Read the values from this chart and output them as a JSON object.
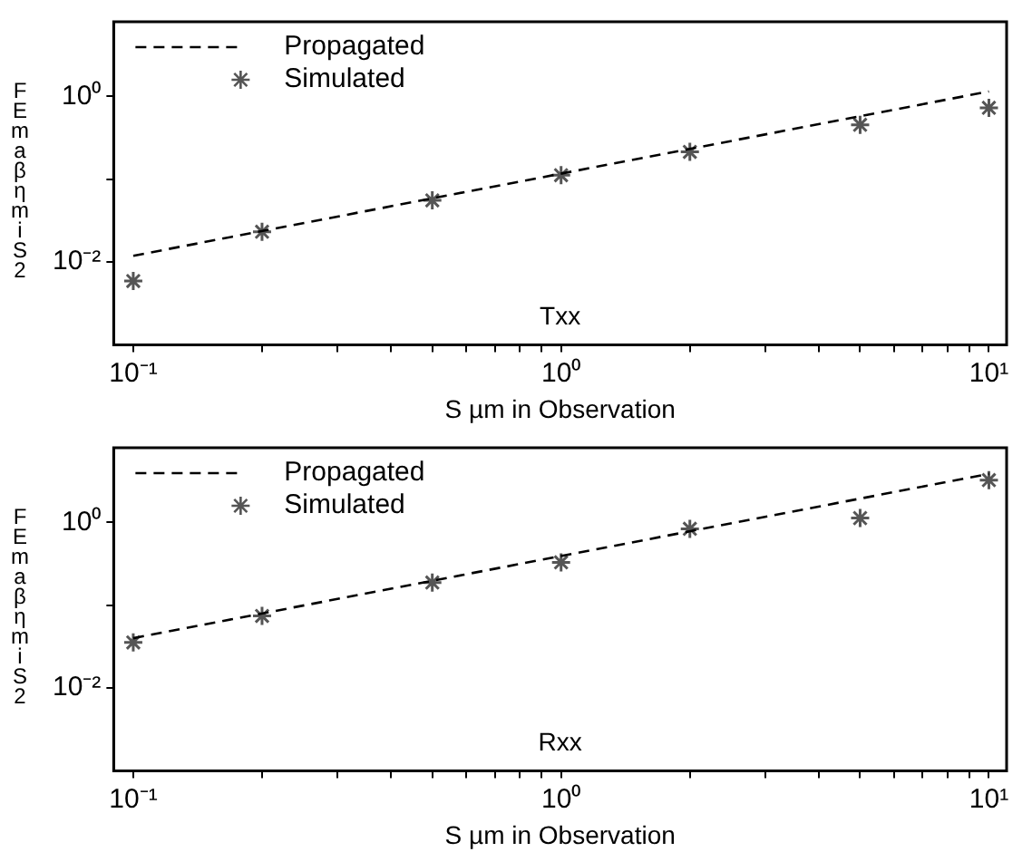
{
  "chart_data": [
    {
      "type": "line",
      "xlabel": "S µm in Observation",
      "ylabel": "FEmaβηmiS2",
      "annotations": [
        "Txx"
      ],
      "legend": "top left",
      "grid": false,
      "log": "xy",
      "xlim": [
        0.09,
        11
      ],
      "ylim": [
        0.001,
        8
      ],
      "xticks": [
        {
          "value": 0.1,
          "label": "10⁻¹"
        },
        {
          "value": 0.2,
          "label": null
        },
        {
          "value": 0.3,
          "label": null
        },
        {
          "value": 0.4,
          "label": null
        },
        {
          "value": 0.5,
          "label": null
        },
        {
          "value": 0.6,
          "label": null
        },
        {
          "value": 0.7,
          "label": null
        },
        {
          "value": 0.8,
          "label": null
        },
        {
          "value": 0.9,
          "label": null
        },
        {
          "value": 1,
          "label": "10⁰"
        },
        {
          "value": 2,
          "label": null
        },
        {
          "value": 3,
          "label": null
        },
        {
          "value": 4,
          "label": null
        },
        {
          "value": 5,
          "label": null
        },
        {
          "value": 6,
          "label": null
        },
        {
          "value": 7,
          "label": null
        },
        {
          "value": 8,
          "label": null
        },
        {
          "value": 9,
          "label": null
        },
        {
          "value": 10,
          "label": "10¹"
        }
      ],
      "yticks": [
        {
          "value": 0.01,
          "label": "10⁻²"
        },
        {
          "value": 0.1,
          "label": null
        },
        {
          "value": 1,
          "label": "10⁰"
        }
      ],
      "series": [
        {
          "name": "Propagated",
          "type": "line",
          "line_style": "dashed",
          "marker": "none",
          "color": "#000000",
          "x": [
            0.1,
            10
          ],
          "values": [
            0.0119,
            1.15
          ]
        },
        {
          "name": "Simulated",
          "type": "scatter",
          "marker": "cross",
          "color": "#555555",
          "x": [
            0.1,
            0.2,
            0.5,
            1,
            2,
            5,
            10
          ],
          "values": [
            0.0059,
            0.0232,
            0.0556,
            0.112,
            0.214,
            0.455,
            0.73
          ]
        }
      ]
    },
    {
      "type": "line",
      "xlabel": "S µm in Observation",
      "ylabel": "FEmaβηmiS2",
      "annotations": [
        "Rxx"
      ],
      "legend": "top left",
      "grid": false,
      "log": "xy",
      "xlim": [
        0.09,
        11
      ],
      "ylim": [
        0.001,
        8
      ],
      "xticks": [
        {
          "value": 0.1,
          "label": "10⁻¹"
        },
        {
          "value": 0.2,
          "label": null
        },
        {
          "value": 0.3,
          "label": null
        },
        {
          "value": 0.4,
          "label": null
        },
        {
          "value": 0.5,
          "label": null
        },
        {
          "value": 0.6,
          "label": null
        },
        {
          "value": 0.7,
          "label": null
        },
        {
          "value": 0.8,
          "label": null
        },
        {
          "value": 0.9,
          "label": null
        },
        {
          "value": 1,
          "label": "10⁰"
        },
        {
          "value": 2,
          "label": null
        },
        {
          "value": 3,
          "label": null
        },
        {
          "value": 4,
          "label": null
        },
        {
          "value": 5,
          "label": null
        },
        {
          "value": 6,
          "label": null
        },
        {
          "value": 7,
          "label": null
        },
        {
          "value": 8,
          "label": null
        },
        {
          "value": 9,
          "label": null
        },
        {
          "value": 10,
          "label": "10¹"
        }
      ],
      "yticks": [
        {
          "value": 0.01,
          "label": "10⁻²"
        },
        {
          "value": 0.1,
          "label": null
        },
        {
          "value": 1,
          "label": "10⁰"
        }
      ],
      "series": [
        {
          "name": "Propagated",
          "type": "line",
          "line_style": "dashed",
          "marker": "none",
          "color": "#000000",
          "x": [
            0.1,
            10
          ],
          "values": [
            0.04,
            3.87
          ]
        },
        {
          "name": "Simulated",
          "type": "scatter",
          "marker": "cross",
          "color": "#555555",
          "x": [
            0.1,
            0.2,
            0.5,
            1,
            2,
            5,
            10
          ],
          "values": [
            0.0355,
            0.0742,
            0.188,
            0.33,
            0.839,
            1.13,
            3.25
          ]
        }
      ]
    }
  ]
}
